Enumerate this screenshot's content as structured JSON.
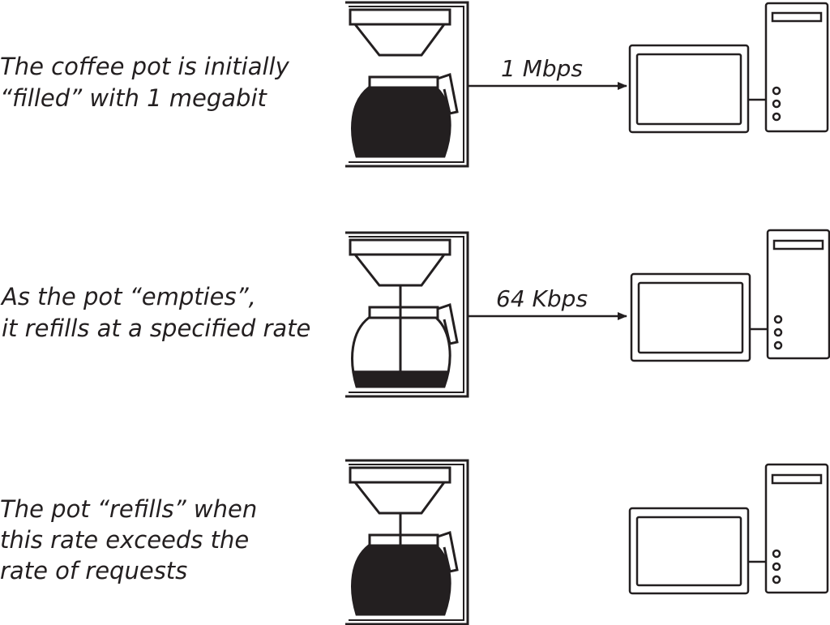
{
  "scenes": [
    {
      "caption": [
        "The coffee pot is initially",
        "“filled” with 1 megabit"
      ],
      "rate_label": "1 Mbps",
      "pot_fill": 1.0,
      "dripping": false,
      "arrow": true
    },
    {
      "caption": [
        "As the pot “empties”,",
        "it refills at a specified rate"
      ],
      "rate_label": "64 Kbps",
      "pot_fill": 0.25,
      "dripping": true,
      "arrow": true
    },
    {
      "caption": [
        "The pot “refills” when",
        "this rate exceeds the",
        "rate of requests"
      ],
      "rate_label": "",
      "pot_fill": 1.0,
      "dripping": true,
      "arrow": false
    }
  ]
}
